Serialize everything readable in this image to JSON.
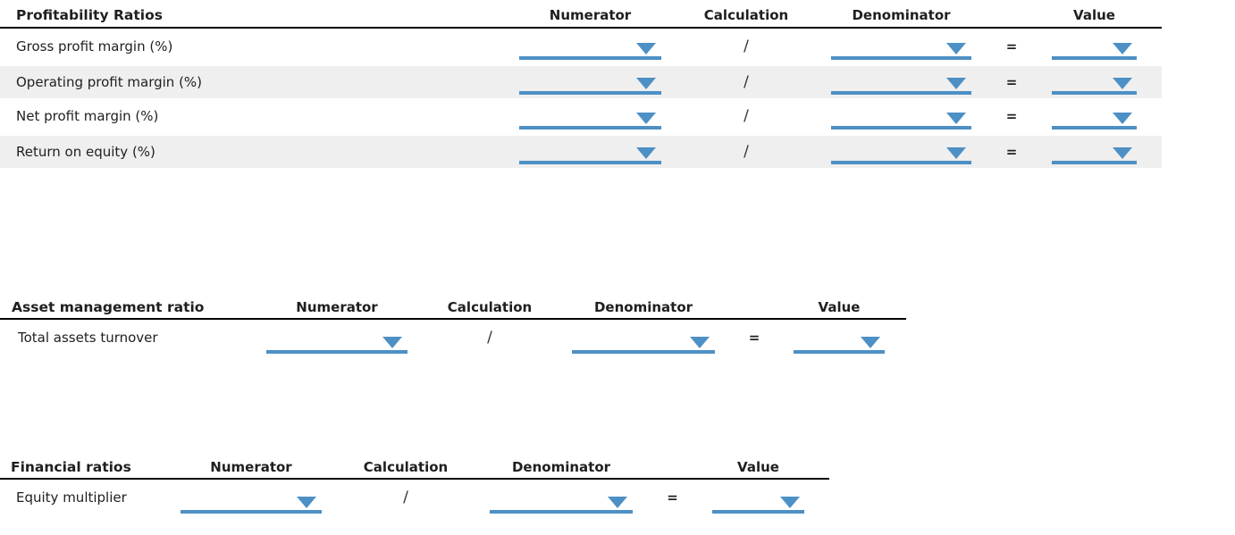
{
  "colors": {
    "accent": "#4d90c5",
    "stripe": "#efefef",
    "header_line": "#000000",
    "text": "#1f1f1f"
  },
  "operators": {
    "divide": "/",
    "equals": "="
  },
  "tables": [
    {
      "title": "Profitability Ratios",
      "columns": {
        "numerator": "Numerator",
        "calculation": "Calculation",
        "denominator": "Denominator",
        "value": "Value"
      },
      "rows": [
        {
          "label": "Gross profit margin (%)"
        },
        {
          "label": "Operating profit margin (%)"
        },
        {
          "label": "Net profit margin (%)"
        },
        {
          "label": "Return on equity (%)"
        }
      ]
    },
    {
      "title": "Asset management ratio",
      "columns": {
        "numerator": "Numerator",
        "calculation": "Calculation",
        "denominator": "Denominator",
        "value": "Value"
      },
      "rows": [
        {
          "label": "Total assets turnover"
        }
      ]
    },
    {
      "title": "Financial ratios",
      "columns": {
        "numerator": "Numerator",
        "calculation": "Calculation",
        "denominator": "Denominator",
        "value": "Value"
      },
      "rows": [
        {
          "label": "Equity multiplier"
        }
      ]
    }
  ]
}
